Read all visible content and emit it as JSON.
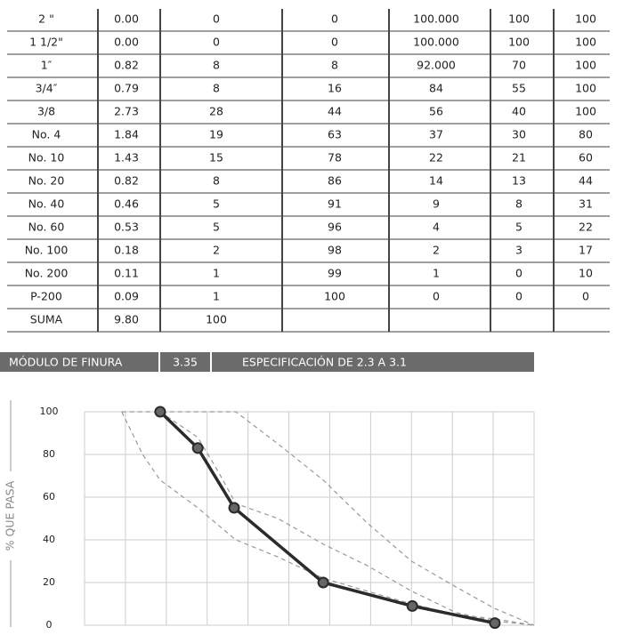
{
  "table": {
    "rows": [
      [
        "2 \"",
        "0.00",
        "0",
        "0",
        "100.000",
        "100",
        "100"
      ],
      [
        "1 1/2\"",
        "0.00",
        "0",
        "0",
        "100.000",
        "100",
        "100"
      ],
      [
        "1″",
        "0.82",
        "8",
        "8",
        "92.000",
        "70",
        "100"
      ],
      [
        "3/4″",
        "0.79",
        "8",
        "16",
        "84",
        "55",
        "100"
      ],
      [
        "3/8",
        "2.73",
        "28",
        "44",
        "56",
        "40",
        "100"
      ],
      [
        "No. 4",
        "1.84",
        "19",
        "63",
        "37",
        "30",
        "80"
      ],
      [
        "No. 10",
        "1.43",
        "15",
        "78",
        "22",
        "21",
        "60"
      ],
      [
        "No. 20",
        "0.82",
        "8",
        "86",
        "14",
        "13",
        "44"
      ],
      [
        "No. 40",
        "0.46",
        "5",
        "91",
        "9",
        "8",
        "31"
      ],
      [
        "No. 60",
        "0.53",
        "5",
        "96",
        "4",
        "5",
        "22"
      ],
      [
        "No. 100",
        "0.18",
        "2",
        "98",
        "2",
        "3",
        "17"
      ],
      [
        "No. 200",
        "0.11",
        "1",
        "99",
        "1",
        "0",
        "10"
      ],
      [
        "P-200",
        "0.09",
        "1",
        "100",
        "0",
        "0",
        "0"
      ],
      [
        "SUMA",
        "9.80",
        "100"
      ]
    ]
  },
  "fineness": {
    "label": "MÓDULO DE FINURA",
    "value": "3.35",
    "spec": "ESPECIFICACIÓN DE 2.3 A 3.1"
  },
  "chart_data": {
    "type": "line",
    "y_label": "% QUE PASA",
    "xlim": [
      0,
      11
    ],
    "ylim": [
      0,
      100
    ],
    "yticks": [
      0,
      20,
      40,
      60,
      80,
      100
    ],
    "grid": true,
    "series": [
      {
        "color": "#999999",
        "dashed": true,
        "x": [
          0.91,
          1.85,
          3.7,
          4.73,
          5.84,
          6.91,
          8.0,
          9.08,
          10.02,
          11
        ],
        "values": [
          100,
          100,
          100,
          85,
          68,
          48,
          30,
          18,
          8,
          0
        ]
      },
      {
        "color": "#999999",
        "dashed": true,
        "x": [
          0.91,
          1.42,
          1.85,
          2.77,
          3.7,
          4.73,
          5.84,
          6.91,
          8.0,
          9.08,
          10.02,
          11
        ],
        "values": [
          100,
          80,
          68,
          55,
          40,
          32,
          22,
          16,
          10,
          5,
          3,
          0
        ]
      },
      {
        "color": "#999999",
        "dashed": true,
        "x": [
          1.85,
          2.77,
          3.27,
          3.7,
          4.73,
          5.84,
          6.91,
          8.0,
          9.08,
          10.02,
          11
        ],
        "values": [
          100,
          88,
          72,
          57,
          50,
          38,
          28,
          16,
          6,
          2,
          0
        ]
      },
      {
        "color": "#2b2b2b",
        "markers": true,
        "x": [
          1.85,
          2.77,
          3.66,
          5.84,
          8.02,
          10.04
        ],
        "values": [
          100,
          83,
          55,
          20,
          9,
          1
        ]
      }
    ]
  }
}
